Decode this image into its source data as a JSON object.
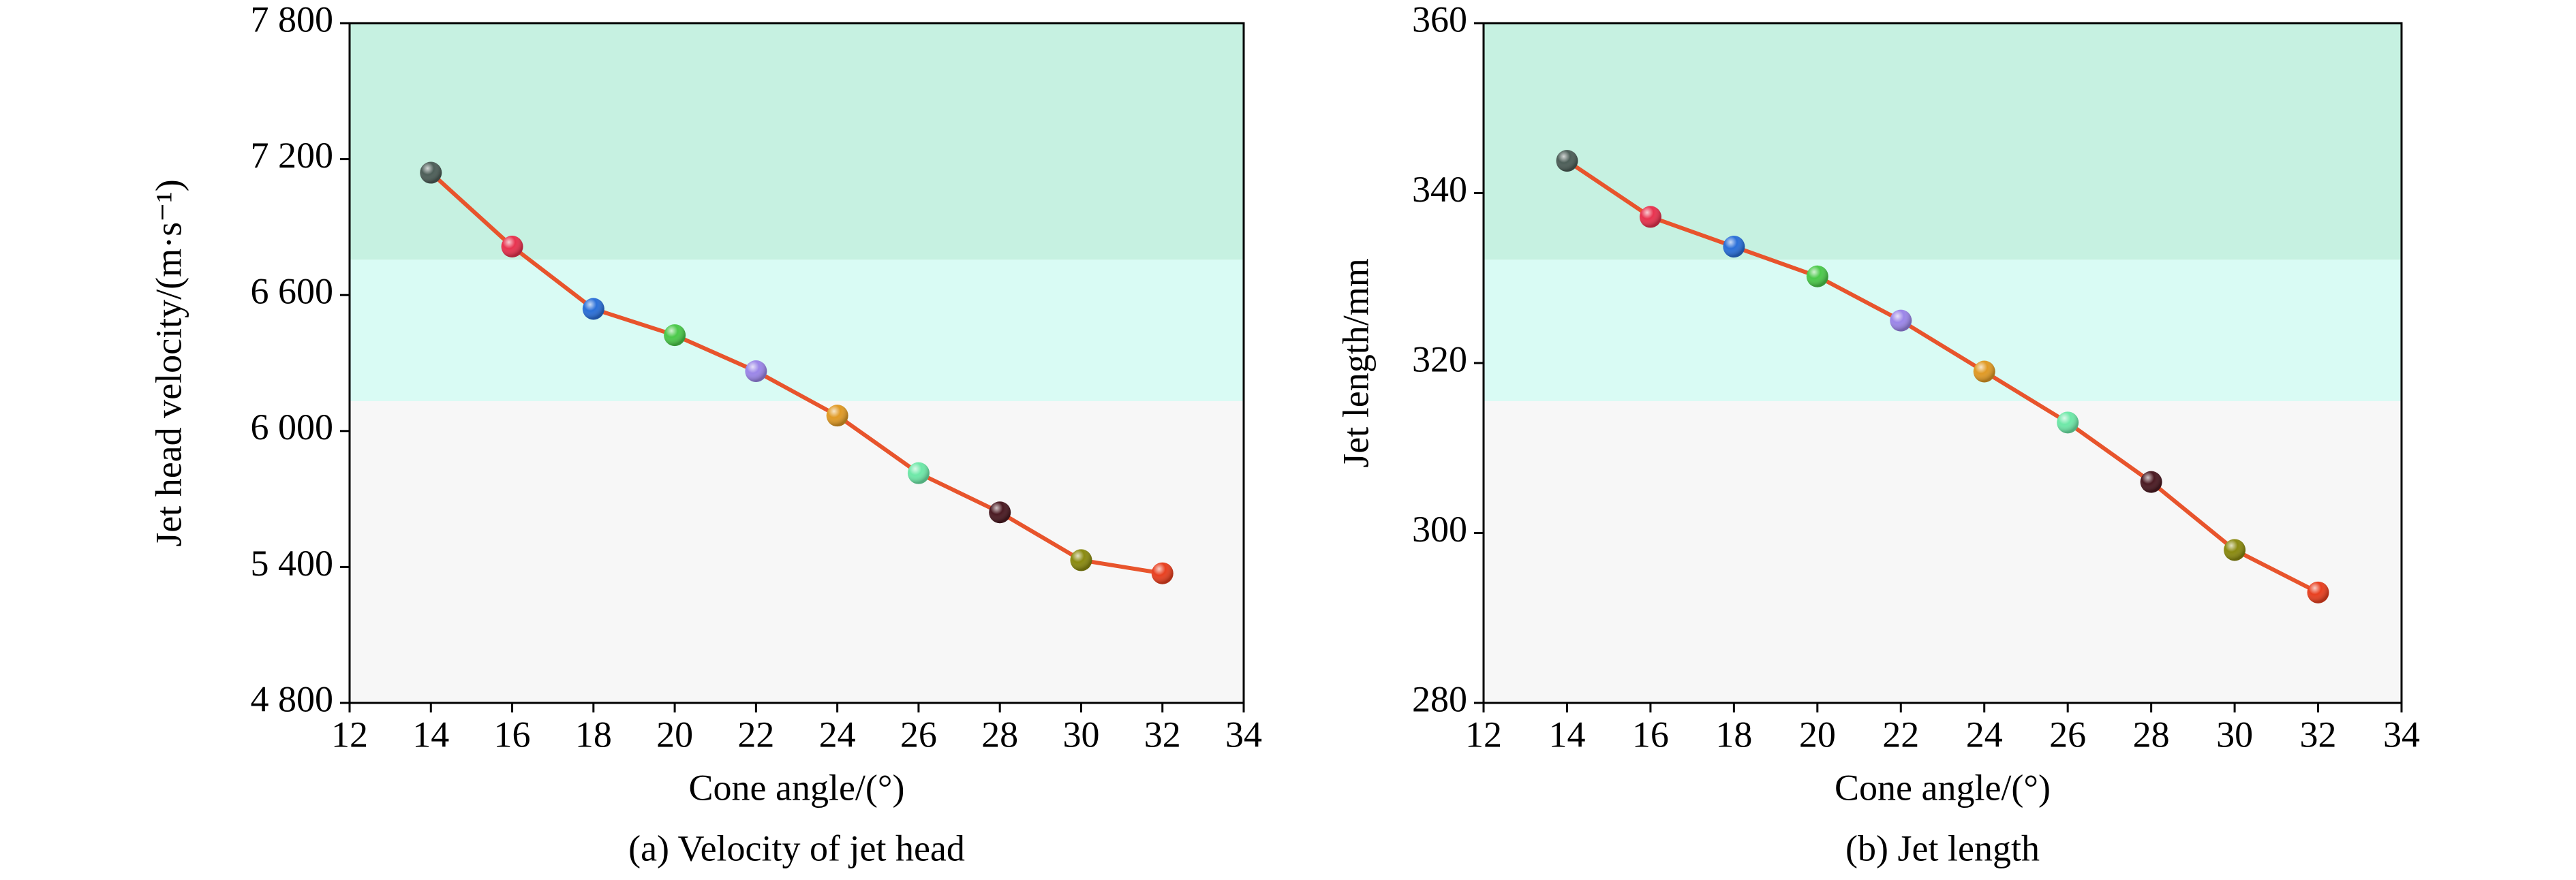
{
  "chart_data": [
    {
      "type": "line",
      "caption": "(a) Velocity of jet head",
      "x_label": "Cone angle/(°)",
      "y_label": "Jet head velocity/(m·s⁻¹)",
      "x": [
        14,
        16,
        18,
        20,
        22,
        24,
        26,
        28,
        30,
        32
      ],
      "series": [
        {
          "color": "#e8542c",
          "marker_colors": [
            "#4d5e58",
            "#e8334f",
            "#2a6fd8",
            "#4bc94a",
            "#9b86e8",
            "#e09a25",
            "#6ee8a8",
            "#4a1a22",
            "#8a8a10",
            "#e84020"
          ],
          "values": [
            7140,
            6814,
            6539,
            6423,
            6264,
            6068,
            5814,
            5641,
            5430,
            5372
          ]
        }
      ],
      "xlim": [
        12,
        34
      ],
      "xticks": [
        12,
        14,
        16,
        18,
        20,
        22,
        24,
        26,
        28,
        30,
        32,
        34
      ],
      "ylim": [
        4800,
        7800
      ],
      "yticks": [
        {
          "value": 4800,
          "label": "4 800"
        },
        {
          "value": 5400,
          "label": "5 400"
        },
        {
          "value": 6000,
          "label": "6 000"
        },
        {
          "value": 6600,
          "label": "6 600"
        },
        {
          "value": 7200,
          "label": "7 200"
        },
        {
          "value": 7800,
          "label": "7 800"
        }
      ]
    },
    {
      "type": "line",
      "caption": "(b) Jet length",
      "x_label": "Cone angle/(°)",
      "y_label": "Jet length/mm",
      "x": [
        14,
        16,
        18,
        20,
        22,
        24,
        26,
        28,
        30,
        32
      ],
      "series": [
        {
          "color": "#e8542c",
          "marker_colors": [
            "#4d5e58",
            "#e8334f",
            "#2a6fd8",
            "#4bc94a",
            "#9b86e8",
            "#e09a25",
            "#6ee8a8",
            "#4a1a22",
            "#8a8a10",
            "#e84020"
          ],
          "values": [
            343.8,
            337.2,
            333.7,
            330.2,
            325,
            319,
            313,
            306,
            298,
            293
          ]
        }
      ],
      "xlim": [
        12,
        34
      ],
      "xticks": [
        12,
        14,
        16,
        18,
        20,
        22,
        24,
        26,
        28,
        30,
        32,
        34
      ],
      "ylim": [
        280,
        360
      ],
      "yticks": [
        280,
        300,
        320,
        340,
        360
      ]
    }
  ]
}
